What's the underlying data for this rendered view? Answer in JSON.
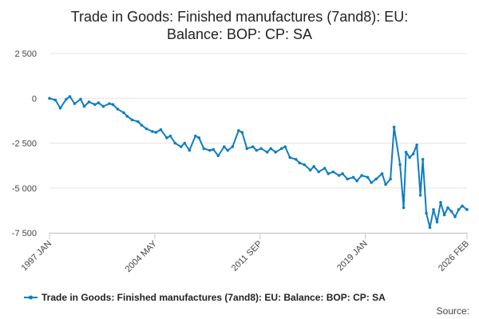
{
  "chart_data": {
    "type": "line",
    "title": "Trade in Goods: Finished manufactures (7and8): EU: Balance: BOP: CP: SA",
    "title_lines": [
      "Trade in Goods: Finished manufactures (7and8): EU:",
      "Balance: BOP: CP: SA"
    ],
    "xlabel": "",
    "ylabel": "",
    "xlim": [
      "1997 JAN",
      "2026 FEB"
    ],
    "ylim": [
      -7500,
      2500
    ],
    "y_ticks": [
      {
        "value": 2500,
        "label": "2 500"
      },
      {
        "value": 0,
        "label": "0"
      },
      {
        "value": -2500,
        "label": "-2 500"
      },
      {
        "value": -5000,
        "label": "-5 000"
      },
      {
        "value": -7500,
        "label": "-7 500"
      }
    ],
    "x_ticks": [
      {
        "value": "1997 JAN",
        "label": "1997 JAN"
      },
      {
        "value": "2004 MAY",
        "label": "2004 MAY"
      },
      {
        "value": "2011 SEP",
        "label": "2011 SEP"
      },
      {
        "value": "2019 JAN",
        "label": "2019 JAN"
      },
      {
        "value": "2026 FEB",
        "label": "2026 FEB"
      }
    ],
    "grid": true,
    "legend_position": "bottom",
    "series": [
      {
        "name": "Trade in Goods: Finished manufactures (7and8): EU: Balance: BOP: CP: SA",
        "color": "#0f7dc2",
        "points": [
          [
            "1997-01",
            0
          ],
          [
            "1997-06",
            -100
          ],
          [
            "1997-10",
            -550
          ],
          [
            "1998-03",
            -50
          ],
          [
            "1998-06",
            100
          ],
          [
            "1998-10",
            -300
          ],
          [
            "1999-03",
            -50
          ],
          [
            "1999-06",
            -450
          ],
          [
            "1999-10",
            -200
          ],
          [
            "2000-03",
            -350
          ],
          [
            "2000-06",
            -250
          ],
          [
            "2000-10",
            -450
          ],
          [
            "2001-03",
            -300
          ],
          [
            "2001-06",
            -350
          ],
          [
            "2001-10",
            -600
          ],
          [
            "2002-03",
            -800
          ],
          [
            "2002-06",
            -1000
          ],
          [
            "2002-10",
            -1200
          ],
          [
            "2003-03",
            -1300
          ],
          [
            "2003-06",
            -1500
          ],
          [
            "2003-10",
            -1700
          ],
          [
            "2004-03",
            -1850
          ],
          [
            "2004-06",
            -1900
          ],
          [
            "2004-10",
            -1750
          ],
          [
            "2005-03",
            -2200
          ],
          [
            "2005-06",
            -2100
          ],
          [
            "2005-10",
            -2500
          ],
          [
            "2006-03",
            -2700
          ],
          [
            "2006-06",
            -2500
          ],
          [
            "2006-10",
            -2900
          ],
          [
            "2007-03",
            -2100
          ],
          [
            "2007-06",
            -2200
          ],
          [
            "2007-10",
            -2800
          ],
          [
            "2008-03",
            -2900
          ],
          [
            "2008-06",
            -2850
          ],
          [
            "2008-10",
            -3200
          ],
          [
            "2009-03",
            -2700
          ],
          [
            "2009-06",
            -2900
          ],
          [
            "2009-10",
            -2700
          ],
          [
            "2010-03",
            -1800
          ],
          [
            "2010-06",
            -1900
          ],
          [
            "2010-10",
            -2800
          ],
          [
            "2011-03",
            -2700
          ],
          [
            "2011-06",
            -2900
          ],
          [
            "2011-10",
            -2800
          ],
          [
            "2012-03",
            -3000
          ],
          [
            "2012-06",
            -2800
          ],
          [
            "2012-10",
            -3000
          ],
          [
            "2013-03",
            -2800
          ],
          [
            "2013-06",
            -2700
          ],
          [
            "2013-10",
            -3300
          ],
          [
            "2014-03",
            -3400
          ],
          [
            "2014-06",
            -3600
          ],
          [
            "2014-10",
            -3700
          ],
          [
            "2015-03",
            -4000
          ],
          [
            "2015-06",
            -3800
          ],
          [
            "2015-10",
            -4100
          ],
          [
            "2016-03",
            -3900
          ],
          [
            "2016-06",
            -4200
          ],
          [
            "2016-10",
            -4100
          ],
          [
            "2017-03",
            -4300
          ],
          [
            "2017-06",
            -4200
          ],
          [
            "2017-10",
            -4500
          ],
          [
            "2018-03",
            -4400
          ],
          [
            "2018-06",
            -4600
          ],
          [
            "2018-10",
            -4300
          ],
          [
            "2019-03",
            -4400
          ],
          [
            "2019-06",
            -4700
          ],
          [
            "2019-10",
            -4500
          ],
          [
            "2020-03",
            -4200
          ],
          [
            "2020-06",
            -4800
          ],
          [
            "2020-10",
            -4500
          ],
          [
            "2021-01",
            -1600
          ],
          [
            "2021-06",
            -3700
          ],
          [
            "2021-09",
            -6100
          ],
          [
            "2021-11",
            -3000
          ],
          [
            "2022-02",
            -3300
          ],
          [
            "2022-05",
            -3100
          ],
          [
            "2022-08",
            -2600
          ],
          [
            "2022-11",
            -5400
          ],
          [
            "2023-01",
            -3400
          ],
          [
            "2023-04",
            -6400
          ],
          [
            "2023-07",
            -7200
          ],
          [
            "2023-10",
            -6200
          ],
          [
            "2024-01",
            -6900
          ],
          [
            "2024-04",
            -5800
          ],
          [
            "2024-07",
            -6500
          ],
          [
            "2024-10",
            -6100
          ],
          [
            "2025-01",
            -6300
          ],
          [
            "2025-04",
            -6600
          ],
          [
            "2025-07",
            -6200
          ],
          [
            "2025-10",
            -6000
          ],
          [
            "2026-02",
            -6200
          ]
        ]
      }
    ],
    "source_label": "Source:"
  }
}
